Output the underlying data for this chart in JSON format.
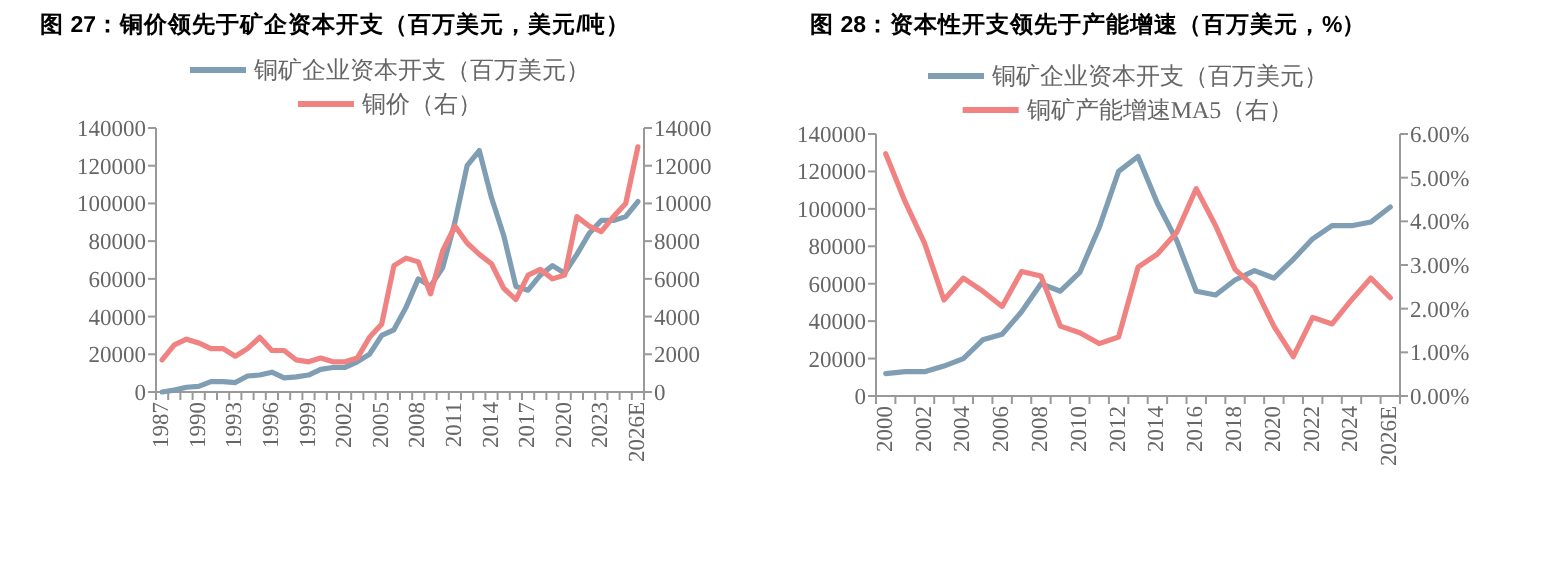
{
  "chart_data": [
    {
      "type": "line",
      "title": "图 27：铜价领先于矿企资本开支（百万美元，美元/吨）",
      "categories": [
        "1987",
        null,
        null,
        "1990",
        null,
        null,
        "1993",
        null,
        null,
        "1996",
        null,
        null,
        "1999",
        null,
        null,
        "2002",
        null,
        null,
        "2005",
        null,
        null,
        "2008",
        null,
        null,
        "2011",
        null,
        null,
        "2014",
        null,
        null,
        "2017",
        null,
        null,
        "2020",
        null,
        null,
        "2023",
        null,
        null,
        "2026E"
      ],
      "series": [
        {
          "name": "铜矿企业资本开支（百万美元）",
          "color": "#7f9db3",
          "values": [
            0,
            1000,
            2500,
            3000,
            5500,
            5500,
            5000,
            8500,
            9000,
            10500,
            7500,
            8000,
            9000,
            12000,
            13000,
            13000,
            16000,
            20000,
            30000,
            33000,
            45000,
            60000,
            56000,
            66000,
            90000,
            120000,
            128000,
            103000,
            83000,
            56000,
            54000,
            62000,
            67000,
            63000,
            73000,
            84000,
            91000,
            91000,
            93000,
            101000
          ]
        },
        {
          "name": "铜价（右）",
          "color": "#f08282",
          "axis": "y2",
          "values": [
            1700,
            2500,
            2800,
            2600,
            2300,
            2300,
            1900,
            2300,
            2900,
            2200,
            2200,
            1700,
            1600,
            1800,
            1600,
            1600,
            1800,
            2900,
            3600,
            6700,
            7100,
            6900,
            5200,
            7500,
            8800,
            7900,
            7300,
            6800,
            5500,
            4900,
            6200,
            6500,
            6000,
            6200,
            9300,
            8800,
            8500,
            9300,
            10000,
            13000
          ]
        }
      ],
      "ylim": [
        0,
        140000
      ],
      "yticks": [
        0,
        20000,
        40000,
        60000,
        80000,
        100000,
        120000,
        140000
      ],
      "y2lim": [
        0,
        14000
      ],
      "y2ticks": [
        0,
        2000,
        4000,
        6000,
        8000,
        10000,
        12000,
        14000
      ],
      "legend": "top"
    },
    {
      "type": "line",
      "title": "图 28：资本性开支领先于产能增速（百万美元，%）",
      "categories": [
        "2000",
        null,
        "2002",
        null,
        "2004",
        null,
        "2006",
        null,
        "2008",
        null,
        "2010",
        null,
        "2012",
        null,
        "2014",
        null,
        "2016",
        null,
        "2018",
        null,
        "2020",
        null,
        "2022",
        null,
        "2024",
        null,
        "2026E"
      ],
      "series": [
        {
          "name": "铜矿企业资本开支（百万美元）",
          "color": "#7f9db3",
          "values": [
            12000,
            13000,
            13000,
            16000,
            20000,
            30000,
            33000,
            45000,
            60000,
            56000,
            66000,
            90000,
            120000,
            128000,
            103000,
            83000,
            56000,
            54000,
            62000,
            67000,
            63000,
            73000,
            84000,
            91000,
            91000,
            93000,
            101000
          ]
        },
        {
          "name": "铜矿产能增速MA5（右）",
          "color": "#f08282",
          "axis": "y2",
          "values": [
            5.55,
            4.45,
            3.5,
            2.2,
            2.7,
            2.4,
            2.05,
            2.85,
            2.75,
            1.6,
            1.45,
            1.2,
            1.35,
            2.95,
            3.25,
            3.75,
            4.75,
            3.9,
            2.9,
            2.5,
            1.6,
            0.9,
            1.8,
            1.65,
            2.2,
            2.7,
            2.25
          ]
        }
      ],
      "ylim": [
        0,
        140000
      ],
      "yticks": [
        0,
        20000,
        40000,
        60000,
        80000,
        100000,
        120000,
        140000
      ],
      "y2lim": [
        0,
        6
      ],
      "y2ticks": [
        {
          "value": 0,
          "label": "0.00%"
        },
        {
          "value": 1,
          "label": "1.00%"
        },
        {
          "value": 2,
          "label": "2.00%"
        },
        {
          "value": 3,
          "label": "3.00%"
        },
        {
          "value": 4,
          "label": "4.00%"
        },
        {
          "value": 5,
          "label": "5.00%"
        },
        {
          "value": 6,
          "label": "6.00%"
        }
      ],
      "legend": "top"
    }
  ]
}
